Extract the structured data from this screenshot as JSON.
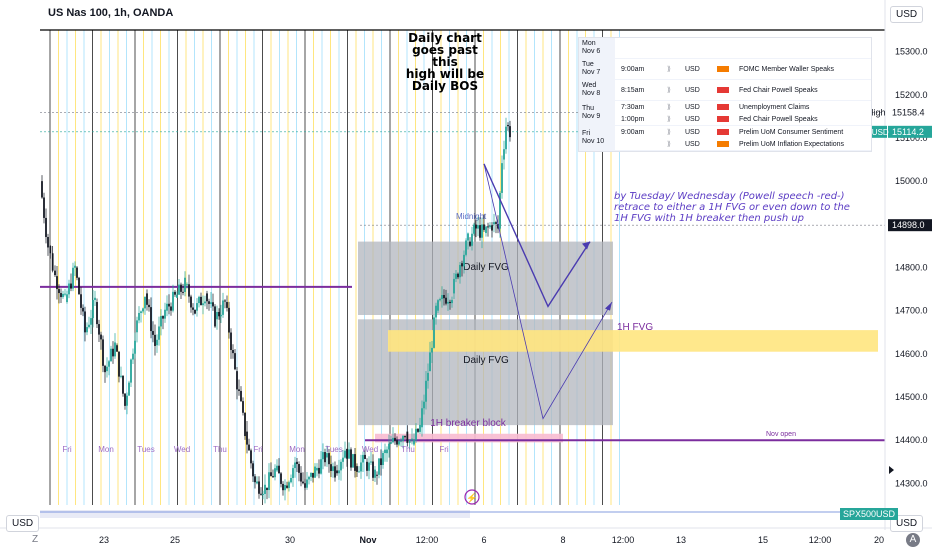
{
  "header": {
    "symbol_title": "US Nas 100, 1h, OANDA",
    "currency_top": "USD",
    "currency_bottom_left": "USD",
    "currency_bottom_right": "USD",
    "spx_label": "SPX500USD",
    "reset_z": "Z",
    "auto_a": "A"
  },
  "price_axis": {
    "ticks": [
      "15300.0",
      "15200.0",
      "15100.0",
      "15000.0",
      "14900.0",
      "14800.0",
      "14700.0",
      "14600.0",
      "14500.0",
      "14400.0",
      "14300.0"
    ],
    "high_label": "High",
    "high_value": "15158.4",
    "current_symbol": "NAS100USD",
    "current_value": "15114.2",
    "marker_value": "14898.0"
  },
  "time_axis": {
    "ticks": [
      "23",
      "25",
      "30",
      "Nov",
      "12:00",
      "6",
      "8",
      "12:00",
      "13",
      "15",
      "12:00",
      "20"
    ]
  },
  "day_labels": [
    "Fri",
    "Mon",
    "Tues",
    "Wed",
    "Thu",
    "Fri",
    "Mon",
    "Tues",
    "Wed",
    "Thu",
    "Fri"
  ],
  "annotations": {
    "daily_chart_note": [
      "Daily chart",
      "goes past this",
      "high will be",
      "Daily BOS"
    ],
    "midnight": "Midnight",
    "daily_fvg_top": "Daily FVG",
    "daily_fvg_bottom": "Daily FVG",
    "fvg_1h": "1H FVG",
    "breaker": "1H breaker block",
    "nov_open": "Nov open",
    "comment": "by Tuesday/ Wednesday (Powell speech -red-) retrace to either a 1H FVG or even down to the 1H FVG with 1H breaker then push up"
  },
  "calendar": [
    {
      "day": "Mon",
      "date": "Nov 6",
      "events": []
    },
    {
      "day": "Tue",
      "date": "Nov 7",
      "events": [
        {
          "time": "9:00am",
          "currency": "USD",
          "impact": "medium",
          "title": "FOMC Member Waller Speaks"
        }
      ]
    },
    {
      "day": "Wed",
      "date": "Nov 8",
      "events": [
        {
          "time": "8:15am",
          "currency": "USD",
          "impact": "high",
          "title": "Fed Chair Powell Speaks"
        }
      ]
    },
    {
      "day": "Thu",
      "date": "Nov 9",
      "events": [
        {
          "time": "7:30am",
          "currency": "USD",
          "impact": "high",
          "title": "Unemployment Claims"
        },
        {
          "time": "1:00pm",
          "currency": "USD",
          "impact": "high",
          "title": "Fed Chair Powell Speaks"
        }
      ]
    },
    {
      "day": "Fri",
      "date": "Nov 10",
      "events": [
        {
          "time": "9:00am",
          "currency": "USD",
          "impact": "high",
          "title": "Prelim UoM Consumer Sentiment"
        },
        {
          "time": "",
          "currency": "USD",
          "impact": "medium",
          "title": "Prelim UoM Inflation Expectations"
        }
      ]
    }
  ],
  "colors": {
    "up": "#26a69a",
    "down": "#131722",
    "purple_level": "#7b2d9e",
    "daily_fvg": "#b2b5be",
    "fvg_1h": "#ffe680",
    "breaker": "#f8bbd0",
    "projection": "#4a3bb0",
    "impact_high": "#e53935",
    "impact_medium": "#f57c00",
    "current_price": "#26a69a"
  },
  "chart_data": {
    "type": "candlestick",
    "symbol": "US Nas 100",
    "interval": "1h",
    "ylim": [
      14250,
      15350
    ],
    "levels": {
      "high": 15158.4,
      "current": 15114.2,
      "marker": 14898.0,
      "nov_open": 14400,
      "purple_level": 14755
    },
    "zones": [
      {
        "name": "Daily FVG",
        "low": 14690,
        "high": 14860
      },
      {
        "name": "Daily FVG",
        "low": 14435,
        "high": 14680
      },
      {
        "name": "1H FVG",
        "low": 14605,
        "high": 14655
      },
      {
        "name": "1H breaker block",
        "low": 14395,
        "high": 14415
      }
    ],
    "price_path": [
      [
        0,
        15000
      ],
      [
        8,
        14850
      ],
      [
        15,
        14780
      ],
      [
        25,
        14720
      ],
      [
        35,
        14800
      ],
      [
        45,
        14650
      ],
      [
        55,
        14720
      ],
      [
        65,
        14560
      ],
      [
        75,
        14620
      ],
      [
        85,
        14480
      ],
      [
        95,
        14650
      ],
      [
        105,
        14740
      ],
      [
        115,
        14620
      ],
      [
        125,
        14700
      ],
      [
        135,
        14730
      ],
      [
        145,
        14760
      ],
      [
        155,
        14700
      ],
      [
        165,
        14740
      ],
      [
        175,
        14680
      ],
      [
        185,
        14720
      ],
      [
        195,
        14560
      ],
      [
        205,
        14420
      ],
      [
        215,
        14300
      ],
      [
        225,
        14290
      ],
      [
        235,
        14330
      ],
      [
        245,
        14295
      ],
      [
        255,
        14350
      ],
      [
        265,
        14290
      ],
      [
        275,
        14330
      ],
      [
        285,
        14360
      ],
      [
        295,
        14330
      ],
      [
        305,
        14380
      ],
      [
        315,
        14340
      ],
      [
        325,
        14350
      ],
      [
        335,
        14320
      ],
      [
        345,
        14370
      ],
      [
        355,
        14400
      ],
      [
        365,
        14420
      ],
      [
        372,
        14390
      ],
      [
        380,
        14430
      ],
      [
        388,
        14560
      ],
      [
        396,
        14700
      ],
      [
        404,
        14730
      ],
      [
        412,
        14740
      ],
      [
        420,
        14810
      ],
      [
        428,
        14860
      ],
      [
        436,
        14890
      ],
      [
        444,
        14880
      ],
      [
        452,
        14900
      ],
      [
        458,
        14890
      ],
      [
        462,
        15050
      ],
      [
        466,
        15130
      ],
      [
        470,
        15115
      ]
    ],
    "projection": [
      [
        484,
        15040
      ],
      [
        548,
        14710
      ],
      [
        590,
        14860
      ]
    ]
  }
}
